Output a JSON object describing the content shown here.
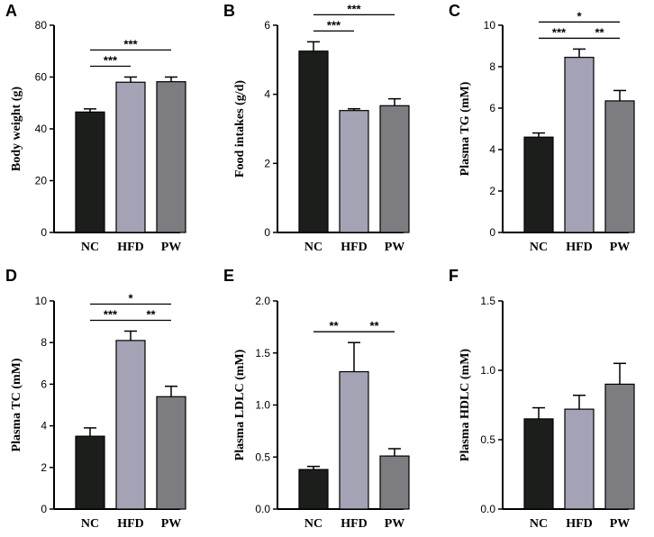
{
  "colors": {
    "NC": "#1c1e1c",
    "HFD": "#a3a3b5",
    "PW": "#7d7c80",
    "axis": "#000000"
  },
  "chart_data": [
    {
      "type": "bar",
      "panel": "A",
      "ylabel": "Body weight (g)",
      "categories": [
        "NC",
        "HFD",
        "PW"
      ],
      "values": [
        46.5,
        58,
        58.2
      ],
      "errors": [
        1.2,
        2,
        1.8
      ],
      "ylim": [
        0,
        80
      ],
      "yticks": [
        0,
        20,
        40,
        60,
        80
      ],
      "tick_labels": [
        "0",
        "20",
        "40",
        "60",
        "80"
      ],
      "significance": [
        {
          "from": 0,
          "to": 1,
          "label": "***"
        },
        {
          "from": 0,
          "to": 2,
          "label": "***"
        }
      ]
    },
    {
      "type": "bar",
      "panel": "B",
      "ylabel": "Food intakes (g/d)",
      "categories": [
        "NC",
        "HFD",
        "PW"
      ],
      "values": [
        5.25,
        3.53,
        3.67
      ],
      "errors": [
        0.27,
        0.05,
        0.2
      ],
      "ylim": [
        0,
        6
      ],
      "yticks": [
        0,
        2,
        4,
        6
      ],
      "tick_labels": [
        "0",
        "2",
        "4",
        "6"
      ],
      "significance": [
        {
          "from": 0,
          "to": 1,
          "label": "***"
        },
        {
          "from": 0,
          "to": 2,
          "label": "***"
        }
      ]
    },
    {
      "type": "bar",
      "panel": "C",
      "ylabel": "Plasma TG (mM)",
      "categories": [
        "NC",
        "HFD",
        "PW"
      ],
      "values": [
        4.6,
        8.45,
        6.35
      ],
      "errors": [
        0.2,
        0.4,
        0.5
      ],
      "ylim": [
        0,
        10
      ],
      "yticks": [
        0,
        2,
        4,
        6,
        8,
        10
      ],
      "tick_labels": [
        "0",
        "2",
        "4",
        "6",
        "8",
        "10"
      ],
      "significance": [
        {
          "from": 0,
          "to": 1,
          "label": "***"
        },
        {
          "from": 1,
          "to": 2,
          "label": "**"
        },
        {
          "from": 0,
          "to": 2,
          "label": "*"
        }
      ]
    },
    {
      "type": "bar",
      "panel": "D",
      "ylabel": "Plasma TC (mM)",
      "categories": [
        "NC",
        "HFD",
        "PW"
      ],
      "values": [
        3.5,
        8.1,
        5.4
      ],
      "errors": [
        0.4,
        0.45,
        0.5
      ],
      "ylim": [
        0,
        10
      ],
      "yticks": [
        0,
        2,
        4,
        6,
        8,
        10
      ],
      "tick_labels": [
        "0",
        "2",
        "4",
        "6",
        "8",
        "10"
      ],
      "significance": [
        {
          "from": 0,
          "to": 1,
          "label": "***"
        },
        {
          "from": 1,
          "to": 2,
          "label": "**"
        },
        {
          "from": 0,
          "to": 2,
          "label": "*"
        }
      ]
    },
    {
      "type": "bar",
      "panel": "E",
      "ylabel": "Plasma LDLC (mM)",
      "categories": [
        "NC",
        "HFD",
        "PW"
      ],
      "values": [
        0.38,
        1.32,
        0.51
      ],
      "errors": [
        0.03,
        0.28,
        0.07
      ],
      "ylim": [
        0,
        2
      ],
      "yticks": [
        0,
        0.5,
        1,
        1.5,
        2
      ],
      "tick_labels": [
        "0.0",
        "0.5",
        "1.0",
        "1.5",
        "2.0"
      ],
      "significance": [
        {
          "from": 0,
          "to": 1,
          "label": "**"
        },
        {
          "from": 1,
          "to": 2,
          "label": "**"
        }
      ]
    },
    {
      "type": "bar",
      "panel": "F",
      "ylabel": "Plasma HDLC (mM)",
      "categories": [
        "NC",
        "HFD",
        "PW"
      ],
      "values": [
        0.65,
        0.72,
        0.9
      ],
      "errors": [
        0.08,
        0.1,
        0.15
      ],
      "ylim": [
        0,
        1.5
      ],
      "yticks": [
        0,
        0.5,
        1,
        1.5
      ],
      "tick_labels": [
        "0.0",
        "0.5",
        "1.0",
        "1.5"
      ],
      "significance": []
    }
  ]
}
